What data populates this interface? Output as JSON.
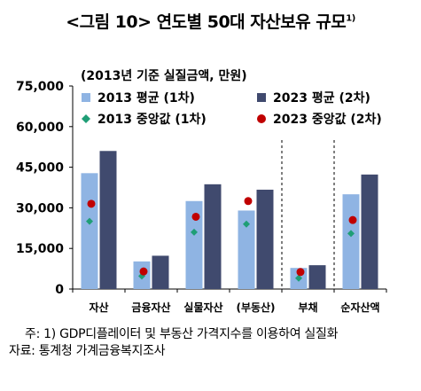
{
  "title": {
    "text": "<그림 10> 연도별 50대 자산보유 규모",
    "footnote_mark": "1)"
  },
  "notes": {
    "note": "주: 1) GDP디플레이터 및 부동산 가격지수를 이용하여 실질화",
    "source": "자료: 통계청 가계금융복지조사"
  },
  "colors": {
    "bar_2013": "#8fb4e3",
    "bar_2023": "#404a6e",
    "median_2013": "#1f9e76",
    "median_2023": "#c00000"
  },
  "chart_data": {
    "type": "bar",
    "unit_label": "(2013년 기준 실질금액, 만원)",
    "categories": [
      "자산",
      "금융자산",
      "실물자산",
      "(부동산)",
      "부채",
      "순자산액"
    ],
    "ylim": [
      0,
      75000
    ],
    "yticks": [
      "0",
      "15,000",
      "30,000",
      "45,000",
      "60,000",
      "75,000"
    ],
    "ytick_values": [
      0,
      15000,
      30000,
      45000,
      60000,
      75000
    ],
    "series": [
      {
        "name": "2013 평균 (1차)",
        "kind": "bar",
        "values": [
          42800,
          10200,
          32500,
          29000,
          7800,
          35000
        ]
      },
      {
        "name": "2023 평균 (2차)",
        "kind": "bar",
        "values": [
          51000,
          12300,
          38700,
          36700,
          8800,
          42300
        ]
      },
      {
        "name": "2013 중앙값 (1차)",
        "kind": "marker",
        "marker": "diamond",
        "values": [
          25000,
          4800,
          21000,
          24000,
          4000,
          20500
        ]
      },
      {
        "name": "2023 중앙값 (2차)",
        "kind": "marker",
        "marker": "circle",
        "values": [
          31500,
          6500,
          26700,
          32500,
          6300,
          25500
        ]
      }
    ],
    "legend_position": "top",
    "grid": false,
    "separators_after_categories": [
      3,
      4
    ]
  }
}
